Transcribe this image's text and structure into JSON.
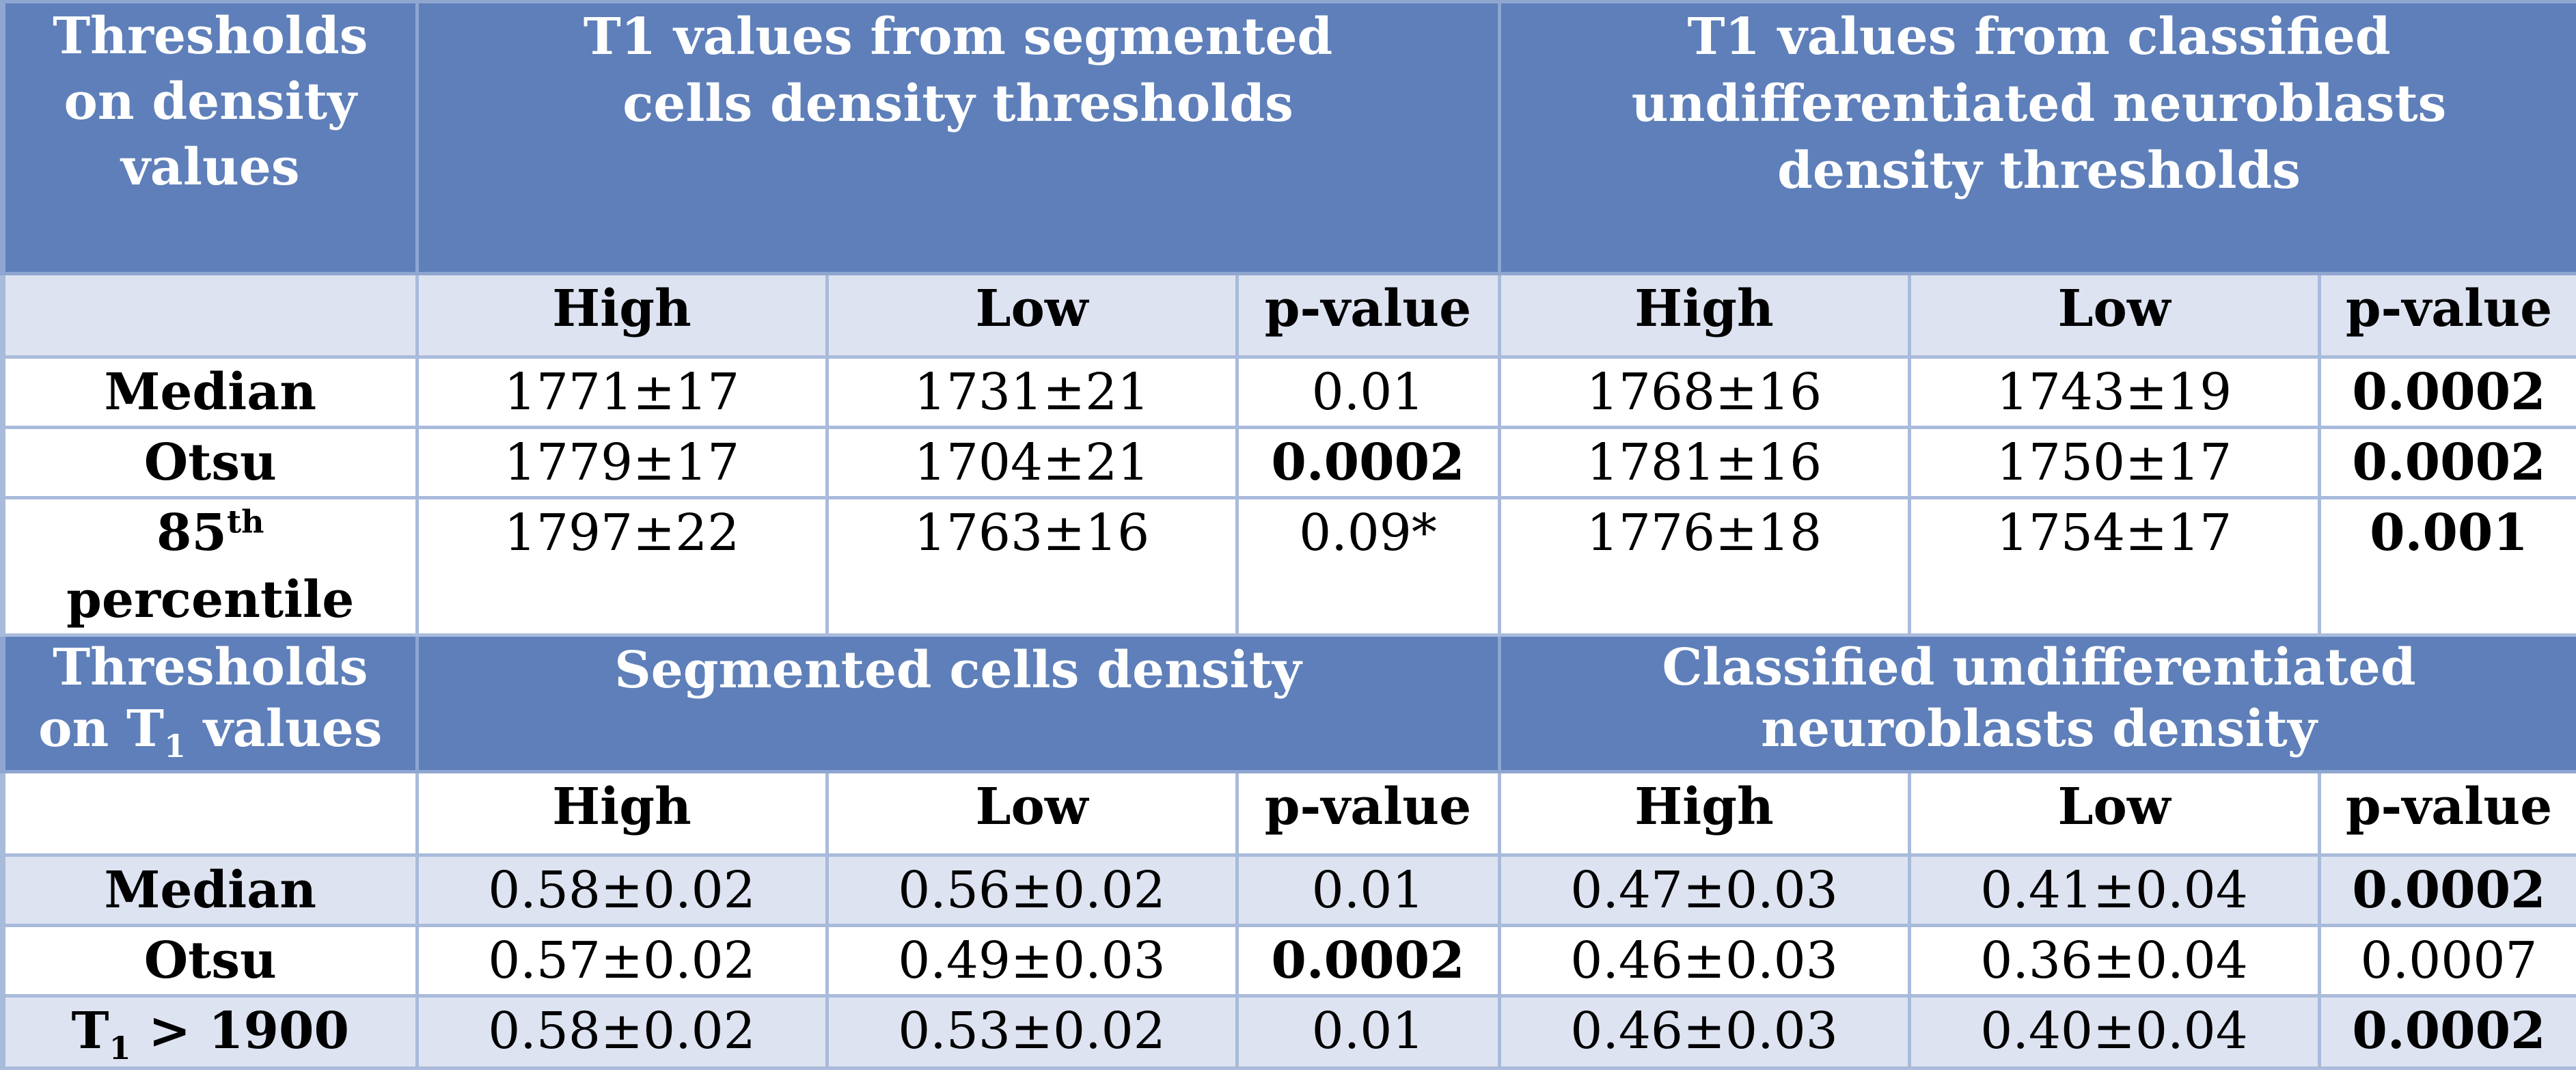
{
  "density_section": {
    "corner_header": "Thresholds on density values",
    "group1_header": "T1 values from segmented cells density thresholds",
    "group2_header": "T1 values from classified undifferentiated neuroblasts density thresholds",
    "columns": [
      "High",
      "Low",
      "p-value",
      "High",
      "Low",
      "p-value"
    ],
    "rows": [
      {
        "label": "Median",
        "values": [
          "1771±17",
          "1731±21",
          "0.01",
          "1768±16",
          "1743±19",
          "0.0002"
        ],
        "bold": [
          false,
          false,
          false,
          false,
          false,
          true
        ]
      },
      {
        "label": "Otsu",
        "values": [
          "1779±17",
          "1704±21",
          "0.0002",
          "1781±16",
          "1750±17",
          "0.0002"
        ],
        "bold": [
          false,
          false,
          true,
          false,
          false,
          true
        ]
      },
      {
        "label_main": "85",
        "label_sup": "th",
        "label_line2": "percentile",
        "values": [
          "1797±22",
          "1763±16",
          "0.09*",
          "1776±18",
          "1754±17",
          "0.001"
        ],
        "bold": [
          false,
          false,
          false,
          false,
          false,
          true
        ]
      }
    ]
  },
  "t1_section": {
    "corner_header_line1": "Thresholds",
    "corner_header_pre": "on T",
    "corner_header_sub": "1",
    "corner_header_post": " values",
    "group1_header": "Segmented cells density",
    "group2_header": "Classified undifferentiated neuroblasts density",
    "columns": [
      "High",
      "Low",
      "p-value",
      "High",
      "Low",
      "p-value"
    ],
    "rows": [
      {
        "label": "Median",
        "values": [
          "0.58±0.02",
          "0.56±0.02",
          "0.01",
          "0.47±0.03",
          "0.41±0.04",
          "0.0002"
        ],
        "bold": [
          false,
          false,
          false,
          false,
          false,
          true
        ]
      },
      {
        "label": "Otsu",
        "values": [
          "0.57±0.02",
          "0.49±0.03",
          "0.0002",
          "0.46±0.03",
          "0.36±0.04",
          "0.0007"
        ],
        "bold": [
          false,
          false,
          true,
          false,
          false,
          false
        ]
      },
      {
        "label_pre": "T",
        "label_sub": "1",
        "label_post": " > 1900",
        "values": [
          "0.58±0.02",
          "0.53±0.02",
          "0.01",
          "0.46±0.03",
          "0.40±0.04",
          "0.0002"
        ],
        "bold": [
          false,
          false,
          false,
          false,
          false,
          true
        ]
      }
    ]
  }
}
